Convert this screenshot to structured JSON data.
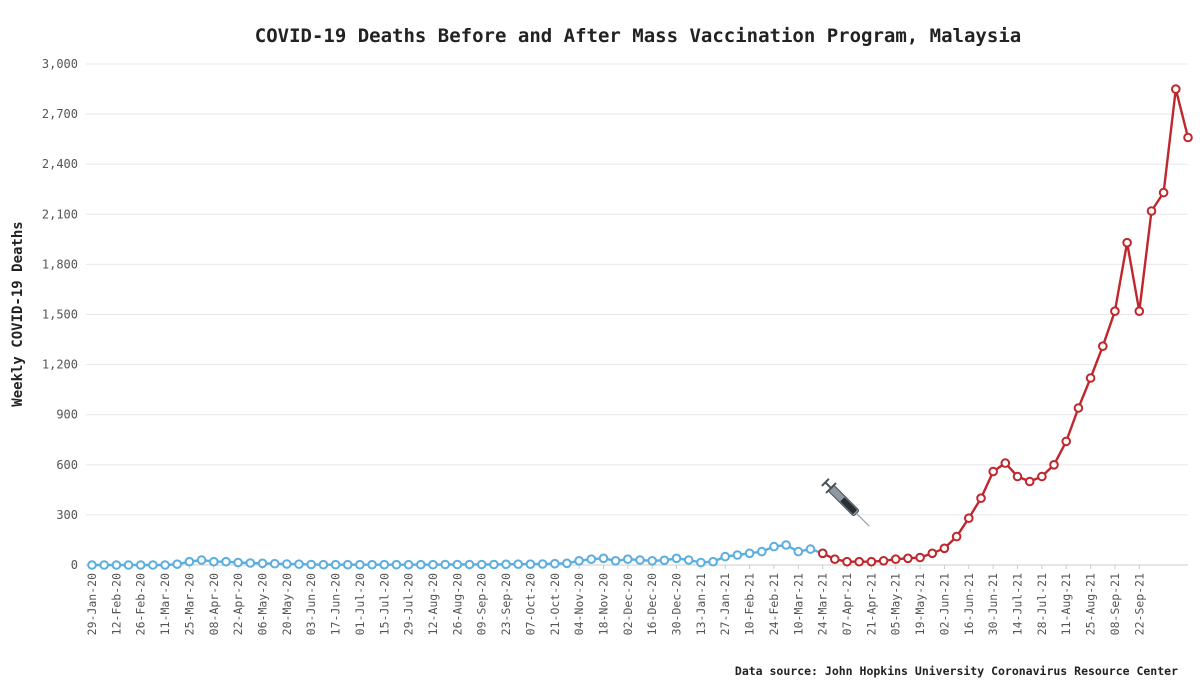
{
  "chart_data": {
    "type": "line",
    "title": "COVID-19 Deaths Before and After Mass Vaccination Program, Malaysia",
    "xlabel": "",
    "ylabel": "Weekly COVID-19 Deaths",
    "ylim": [
      0,
      3000
    ],
    "yticks": [
      "0",
      "300",
      "600",
      "900",
      "1,200",
      "1,500",
      "1,800",
      "2,100",
      "2,400",
      "2,700",
      "3,000"
    ],
    "xticks": [
      "29-Jan-20",
      "12-Feb-20",
      "26-Feb-20",
      "11-Mar-20",
      "25-Mar-20",
      "08-Apr-20",
      "22-Apr-20",
      "06-May-20",
      "20-May-20",
      "03-Jun-20",
      "17-Jun-20",
      "01-Jul-20",
      "15-Jul-20",
      "29-Jul-20",
      "12-Aug-20",
      "26-Aug-20",
      "09-Sep-20",
      "23-Sep-20",
      "07-Oct-20",
      "21-Oct-20",
      "04-Nov-20",
      "18-Nov-20",
      "02-Dec-20",
      "16-Dec-20",
      "30-Dec-20",
      "13-Jan-21",
      "27-Jan-21",
      "10-Feb-21",
      "24-Feb-21",
      "10-Mar-21",
      "24-Mar-21",
      "07-Apr-21",
      "21-Apr-21",
      "05-May-21",
      "19-May-21",
      "02-Jun-21",
      "16-Jun-21",
      "30-Jun-21",
      "14-Jul-21",
      "28-Jul-21",
      "11-Aug-21",
      "25-Aug-21",
      "08-Sep-21",
      "22-Sep-21"
    ],
    "grid": true,
    "series": [
      {
        "color": "#5aaee0",
        "values": [
          0,
          0,
          0,
          0,
          0,
          0,
          0,
          5,
          20,
          30,
          20,
          20,
          15,
          12,
          10,
          8,
          6,
          5,
          3,
          2,
          2,
          2,
          2,
          2,
          2,
          2,
          2,
          2,
          2,
          3,
          3,
          3,
          3,
          3,
          4,
          5,
          5,
          6,
          8,
          10,
          25,
          35,
          40,
          25,
          35,
          30,
          25,
          28,
          40,
          30,
          15,
          20,
          50,
          60,
          70,
          80,
          110,
          120,
          80,
          95,
          70
        ]
      },
      {
        "color": "#c0272d",
        "values": [
          70,
          35,
          20,
          20,
          20,
          25,
          35,
          40,
          45,
          70,
          100,
          170,
          280,
          400,
          560,
          610,
          530,
          500,
          530,
          600,
          740,
          940,
          1120,
          1310,
          1520,
          1930,
          1520,
          2120,
          2230,
          2850,
          2560
        ]
      }
    ],
    "annotation": "syringe-icon"
  },
  "source_note": "Data source: John Hopkins University Coronavirus Resource Center"
}
